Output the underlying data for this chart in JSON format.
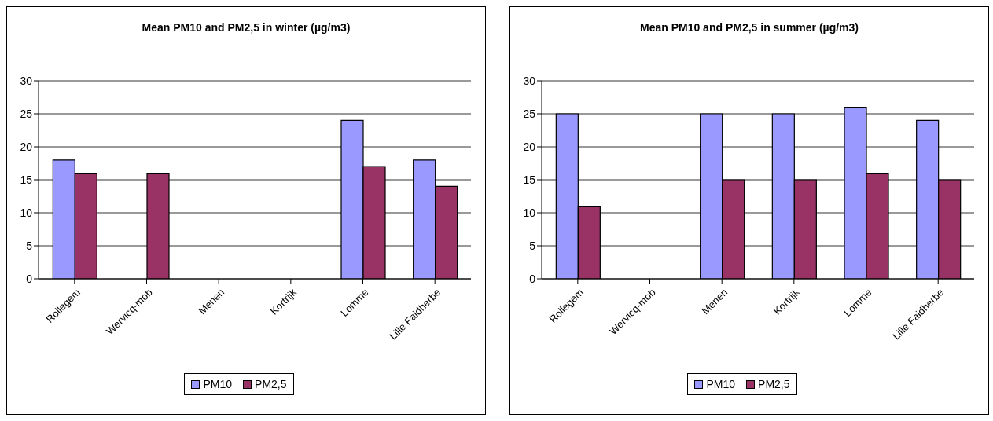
{
  "chart_data": [
    {
      "type": "bar",
      "title": "Mean PM10 and PM2,5 in winter (µg/m3)",
      "categories": [
        "Rollegem",
        "Wervicq-mob",
        "Menen",
        "Kortrijk",
        "Lomme",
        "Lille Faidherbe"
      ],
      "series": [
        {
          "name": "PM10",
          "color": "#9999ff",
          "values": [
            18,
            null,
            null,
            null,
            24,
            18
          ]
        },
        {
          "name": "PM2,5",
          "color": "#993366",
          "values": [
            16,
            16,
            null,
            null,
            17,
            14
          ]
        }
      ],
      "ylim": [
        0,
        30
      ],
      "yticks": [
        0,
        5,
        10,
        15,
        20,
        25,
        30
      ],
      "grid": "y",
      "legend": "bottom"
    },
    {
      "type": "bar",
      "title": "Mean PM10 and PM2,5 in summer (µg/m3)",
      "categories": [
        "Rollegem",
        "Wervicq-mob",
        "Menen",
        "Kortrijk",
        "Lomme",
        "Lille Faidherbe"
      ],
      "series": [
        {
          "name": "PM10",
          "color": "#9999ff",
          "values": [
            25,
            null,
            25,
            25,
            26,
            24
          ]
        },
        {
          "name": "PM2,5",
          "color": "#993366",
          "values": [
            11,
            null,
            15,
            15,
            16,
            15
          ]
        }
      ],
      "ylim": [
        0,
        30
      ],
      "yticks": [
        0,
        5,
        10,
        15,
        20,
        25,
        30
      ],
      "grid": "y",
      "legend": "bottom"
    }
  ]
}
